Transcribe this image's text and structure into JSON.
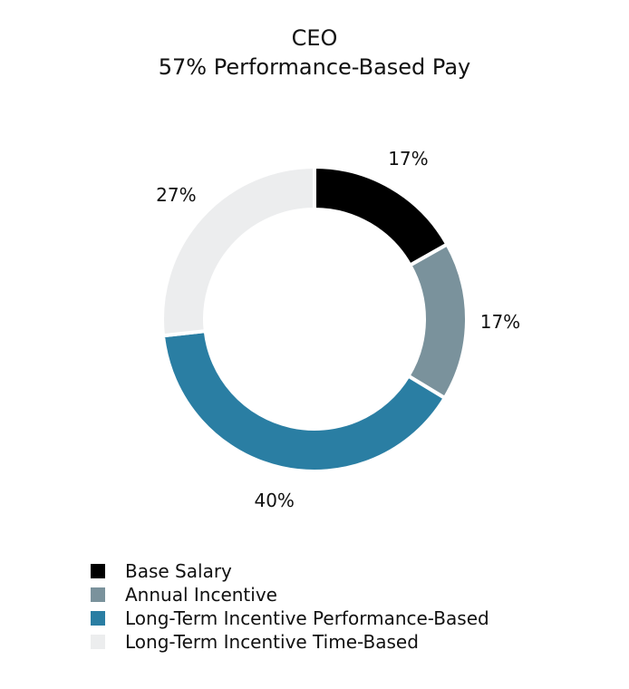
{
  "chart_data": {
    "type": "pie",
    "variant": "donut",
    "title": "CEO",
    "subtitle": "57% Performance-Based Pay",
    "slices": [
      {
        "name": "Base Salary",
        "value": 17,
        "label": "17%",
        "color": "#000000"
      },
      {
        "name": "Annual Incentive",
        "value": 17,
        "label": "17%",
        "color": "#7a929c"
      },
      {
        "name": "Long-Term Incentive Performance-Based",
        "value": 40,
        "label": "40%",
        "color": "#2a7ea3"
      },
      {
        "name": "Long-Term Incentive Time-Based",
        "value": 27,
        "label": "27%",
        "color": "#ecedee"
      }
    ],
    "legend_position": "bottom-left"
  }
}
